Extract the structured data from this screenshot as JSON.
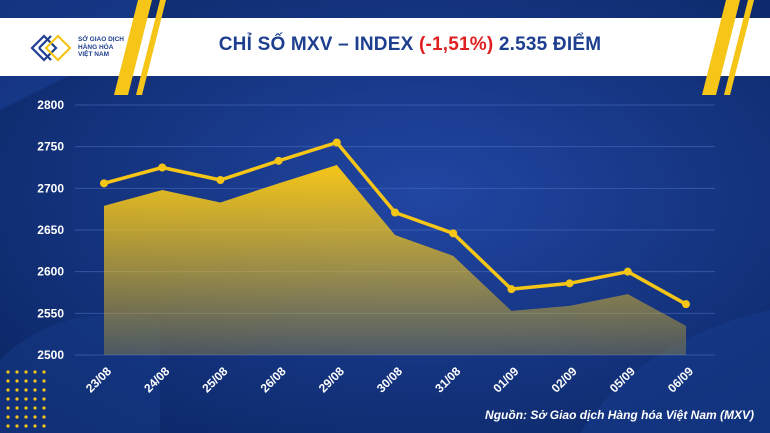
{
  "logo": {
    "lines": [
      "SỞ GIAO DỊCH",
      "HÀNG HÓA",
      "VIỆT NAM"
    ]
  },
  "title": {
    "prefix": "CHỈ SỐ MXV – INDEX ",
    "change": "(-1,51%)",
    "suffix": " 2.535 ĐIỂM"
  },
  "source": "Nguồn: Sở Giao dịch Hàng hóa Việt Nam (MXV)",
  "colors": {
    "background": "#0f2f7a",
    "accent": "#f5c518",
    "title": "#1e3f8f",
    "negative": "#e02020"
  },
  "chart_data": {
    "type": "line",
    "title": "CHỈ SỐ MXV – INDEX (-1,51%) 2.535 ĐIỂM",
    "categories": [
      "23/08",
      "24/08",
      "25/08",
      "26/08",
      "29/08",
      "30/08",
      "31/08",
      "01/09",
      "02/09",
      "05/09",
      "06/09"
    ],
    "values": [
      2706,
      2725,
      2710,
      2733,
      2755,
      2671,
      2646,
      2579,
      2586,
      2600,
      2561
    ],
    "area_values": [
      2679,
      2698,
      2683,
      2706,
      2728,
      2644,
      2619,
      2553,
      2559,
      2573,
      2535
    ],
    "yticks": [
      2500,
      2550,
      2600,
      2650,
      2700,
      2750,
      2800
    ],
    "ylim": [
      2500,
      2800
    ],
    "grid": true,
    "legend": "none"
  }
}
